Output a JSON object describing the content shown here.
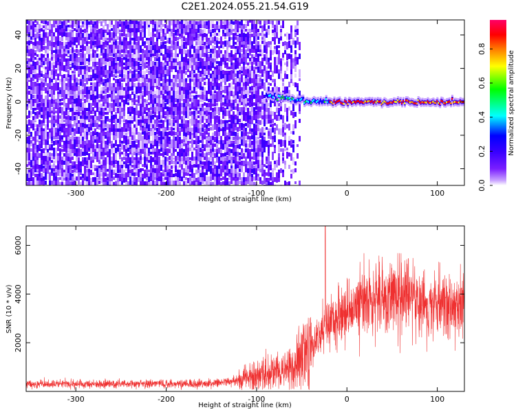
{
  "title": "C2E1.2024.055.21.54.G19",
  "chart_data": [
    {
      "type": "heatmap",
      "xlabel": "Height of straight line (km)",
      "ylabel": "Frequency (Hz)",
      "xlim": [
        -355,
        130
      ],
      "ylim": [
        -50,
        49
      ],
      "xticks": [
        -300,
        -200,
        -100,
        0,
        100
      ],
      "yticks": [
        -40,
        -20,
        0,
        20,
        40
      ],
      "colorbar": {
        "label": "Normalized spectral amplitude",
        "range": [
          0,
          0.97
        ],
        "ticks": [
          0.0,
          0.2,
          0.4,
          0.6,
          0.8
        ],
        "colormap": [
          "#ffffff",
          "#c9a3ff",
          "#7a1fff",
          "#3a00ff",
          "#0000ff",
          "#00ffff",
          "#00ff00",
          "#ffff00",
          "#ff8000",
          "#ff0000",
          "#ff0066"
        ]
      },
      "features": {
        "noise_region_x": [
          -355,
          -52
        ],
        "carrier_frequency_hz": 0,
        "carrier_start_x": -90,
        "carrier_peak_x": [
          -20,
          120
        ]
      }
    },
    {
      "type": "line",
      "xlabel": "Height of straight line (km)",
      "ylabel": "SNR (10 * v/v)",
      "xlim": [
        -355,
        130
      ],
      "ylim": [
        0,
        6800
      ],
      "xticks": [
        -300,
        -200,
        -100,
        0,
        100
      ],
      "yticks": [
        2000,
        4000,
        6000
      ],
      "color": "#ef3030",
      "profile": {
        "x": [
          -355,
          -150,
          -120,
          -100,
          -80,
          -60,
          -50,
          -40,
          -30,
          -20,
          -10,
          0,
          20,
          40,
          60,
          80,
          100,
          110,
          120,
          130
        ],
        "y": [
          300,
          320,
          450,
          700,
          800,
          1000,
          1500,
          1900,
          2400,
          2700,
          3000,
          3200,
          3700,
          4000,
          3900,
          3700,
          3600,
          3400,
          3500,
          3700
        ]
      },
      "spike": {
        "x": -24,
        "y": 6800
      }
    }
  ]
}
